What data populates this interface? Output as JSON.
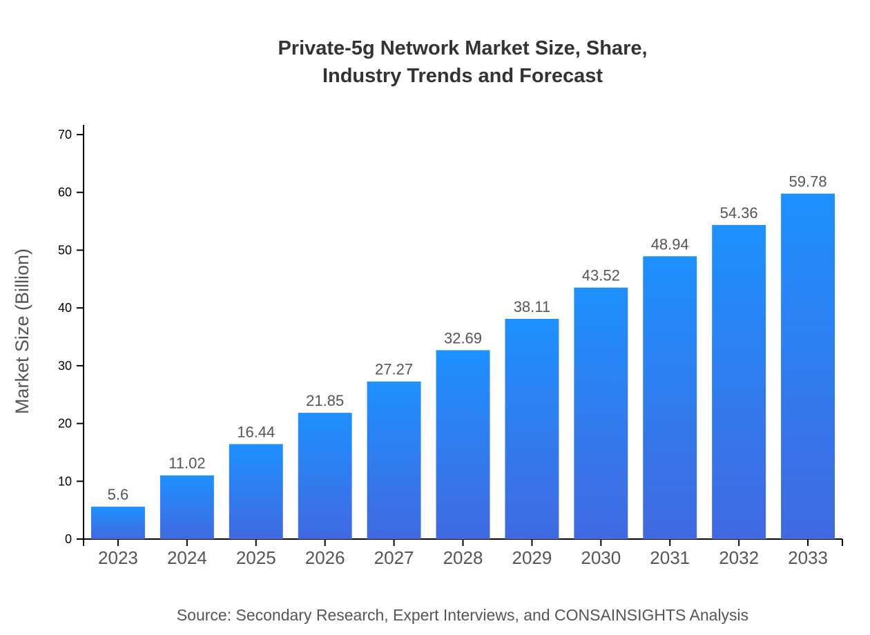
{
  "chart_data": {
    "type": "bar",
    "title_line1": "Private-5g Network Market Size, Share,",
    "title_line2": "Industry Trends and Forecast",
    "ylabel": "Market Size (Billion)",
    "xlabel": "",
    "source": "Source: Secondary Research, Expert Interviews, and CONSAINSIGHTS Analysis",
    "categories": [
      "2023",
      "2024",
      "2025",
      "2026",
      "2027",
      "2028",
      "2029",
      "2030",
      "2031",
      "2032",
      "2033"
    ],
    "values": [
      5.6,
      11.02,
      16.44,
      21.85,
      27.27,
      32.69,
      38.11,
      43.52,
      48.94,
      54.36,
      59.78
    ],
    "ylim": [
      0,
      70
    ],
    "yticks": [
      0,
      10,
      20,
      30,
      40,
      50,
      60,
      70
    ],
    "grid": false,
    "colors": {
      "bar_top": "#1e90ff",
      "bar_bottom": "#4169e1",
      "label": "#555555"
    }
  }
}
